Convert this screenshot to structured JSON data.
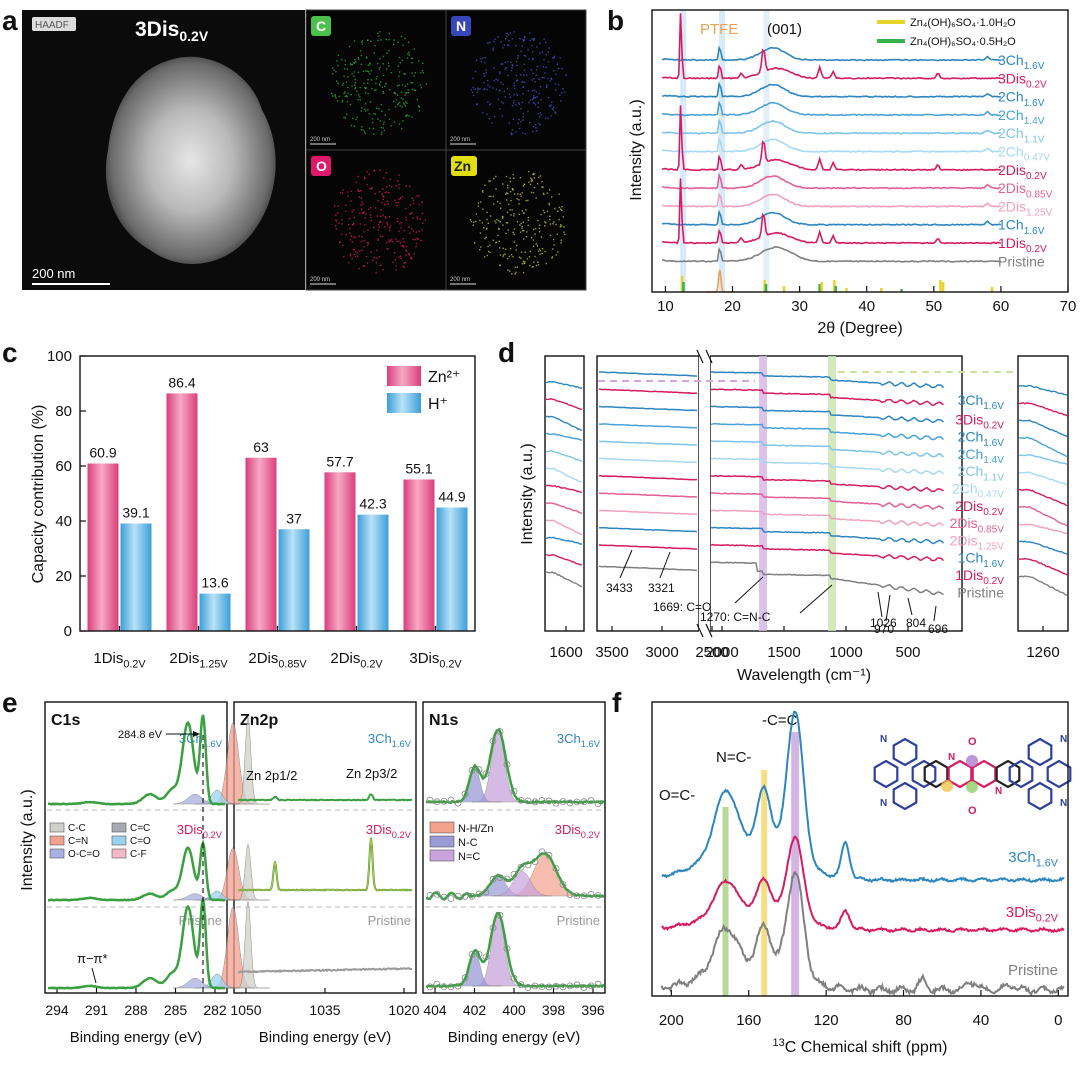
{
  "colors": {
    "charge": "#2e86c1",
    "discharge": "#d81b60",
    "pristine": "#808080",
    "zn_bar": "#e8568f",
    "h_bar": "#5fb4e8",
    "green_fit": "#3aa041"
  },
  "panel_a": {
    "label": "a",
    "title": "3Dis",
    "title_sub": "0.2V",
    "badge": "HAADF",
    "scalebar": "200 nm",
    "small_scale": "200 nm",
    "maps": [
      {
        "element": "C",
        "color": "#4cc04a",
        "dot": "#27b83d"
      },
      {
        "element": "N",
        "color": "#3746b8",
        "dot": "#4a54d0"
      },
      {
        "element": "O",
        "color": "#e0196c",
        "dot": "#e01a6a"
      },
      {
        "element": "Zn",
        "color": "#e2df10",
        "dot": "#cfcb2c"
      }
    ]
  },
  "panel_b": {
    "label": "b",
    "ptfe": "PTFE",
    "peak_001": "(001)",
    "legend": [
      {
        "text": "Zn₄(OH)₆SO₄·1.0H₂O",
        "color": "#e6d428"
      },
      {
        "text": "Zn₄(OH)₆SO₄·0.5H₂O",
        "color": "#38b14a"
      }
    ],
    "xlabel": "2θ (Degree)",
    "ylabel": "Intensity (a.u.)",
    "xticks": [
      "10",
      "20",
      "30",
      "40",
      "50",
      "60",
      "70"
    ],
    "traces": [
      {
        "main": "3Ch",
        "sub": "1.6V",
        "color": "#2e86c1"
      },
      {
        "main": "3Dis",
        "sub": "0.2V",
        "color": "#d81b60"
      },
      {
        "main": "2Ch",
        "sub": "1.6V",
        "color": "#2e86c1"
      },
      {
        "main": "2Ch",
        "sub": "1.4V",
        "color": "#4aa3d8"
      },
      {
        "main": "2Ch",
        "sub": "1.1V",
        "color": "#7fc4ea"
      },
      {
        "main": "2Ch",
        "sub": "0.47V",
        "color": "#a6d9f3"
      },
      {
        "main": "2Dis",
        "sub": "0.2V",
        "color": "#d81b60"
      },
      {
        "main": "2Dis",
        "sub": "0.85V",
        "color": "#e45f95"
      },
      {
        "main": "2Dis",
        "sub": "1.25V",
        "color": "#f0a1c0"
      },
      {
        "main": "1Ch",
        "sub": "1.6V",
        "color": "#2e86c1"
      },
      {
        "main": "1Dis",
        "sub": "0.2V",
        "color": "#d81b60"
      },
      {
        "main": "Pristine",
        "sub": "",
        "color": "#808080"
      }
    ]
  },
  "chart_data": [
    {
      "type": "bar",
      "title": "",
      "xlabel": "",
      "ylabel": "Capacity contribution (%)",
      "ylim": [
        0,
        100
      ],
      "yticks": [
        "0",
        "20",
        "40",
        "60",
        "80",
        "100"
      ],
      "categories": [
        {
          "main": "1Dis",
          "sub": "0.2V"
        },
        {
          "main": "2Dis",
          "sub": "1.25V"
        },
        {
          "main": "2Dis",
          "sub": "0.85V"
        },
        {
          "main": "2Dis",
          "sub": "0.2V"
        },
        {
          "main": "3Dis",
          "sub": "0.2V"
        }
      ],
      "series": [
        {
          "name": "Zn²⁺",
          "labels": [
            "60.9",
            "86.4",
            "63",
            "57.7",
            "55.1"
          ],
          "values": [
            60.9,
            86.4,
            63,
            57.7,
            55.1
          ]
        },
        {
          "name": "H⁺",
          "labels": [
            "39.1",
            "13.6",
            "37",
            "42.3",
            "44.9"
          ],
          "values": [
            39.1,
            13.6,
            37,
            42.3,
            44.9
          ]
        }
      ],
      "legend_position": "top-right"
    }
  ],
  "panel_c": {
    "label": "c"
  },
  "panel_d": {
    "label": "d",
    "ylabel": "Intensity (a.u.)",
    "xlabel": "Wavelength (cm⁻¹)",
    "xticks_left": [
      "1600"
    ],
    "xticks_main1": [
      "3500",
      "3000",
      "2500"
    ],
    "xticks_main2": [
      "2000",
      "1500",
      "1000",
      "500"
    ],
    "xticks_right": [
      "1260"
    ],
    "annotations": [
      "3433",
      "3321",
      "1669: C=O",
      "1270: C=N-C",
      "1026",
      "970",
      "804",
      "696"
    ],
    "traces": [
      {
        "main": "3Ch",
        "sub": "1.6V",
        "color": "#2e86c1"
      },
      {
        "main": "3Dis",
        "sub": "0.2V",
        "color": "#d81b60"
      },
      {
        "main": "2Ch",
        "sub": "1.6V",
        "color": "#2e86c1"
      },
      {
        "main": "2Ch",
        "sub": "1.4V",
        "color": "#4aa3d8"
      },
      {
        "main": "2Ch",
        "sub": "1.1V",
        "color": "#7fc4ea"
      },
      {
        "main": "2Ch",
        "sub": "0.47V",
        "color": "#a6d9f3"
      },
      {
        "main": "2Dis",
        "sub": "0.2V",
        "color": "#d81b60"
      },
      {
        "main": "2Dis",
        "sub": "0.85V",
        "color": "#e45f95"
      },
      {
        "main": "2Dis",
        "sub": "1.25V",
        "color": "#f0a1c0"
      },
      {
        "main": "1Ch",
        "sub": "1.6V",
        "color": "#2e86c1"
      },
      {
        "main": "1Dis",
        "sub": "0.2V",
        "color": "#d81b60"
      },
      {
        "main": "Pristine",
        "sub": "",
        "color": "#808080"
      }
    ]
  },
  "panel_e": {
    "label": "e",
    "ylabel": "Intensity (a.u.)",
    "sub1": {
      "title": "C1s",
      "peak_label": "284.8 eV",
      "pi_label": "π−π*",
      "xticks": [
        "294",
        "291",
        "288",
        "285",
        "282"
      ],
      "xlabel": "Binding energy (eV)",
      "legend": [
        {
          "text": "C-C",
          "color": "#cfd1c8"
        },
        {
          "text": "C=C",
          "color": "#a9aab2"
        },
        {
          "text": "C=N",
          "color": "#f2a08f"
        },
        {
          "text": "C=O",
          "color": "#99d2f0"
        },
        {
          "text": "O-C=O",
          "color": "#aab0e0"
        },
        {
          "text": "C-F",
          "color": "#f3b8c9"
        }
      ]
    },
    "sub2": {
      "title": "Zn2p",
      "p12": "Zn 2p1/2",
      "p32": "Zn 2p3/2",
      "xticks": [
        "1050",
        "1035",
        "1020"
      ],
      "xlabel": "Binding energy (eV)"
    },
    "sub3": {
      "title": "N1s",
      "xticks": [
        "404",
        "402",
        "400",
        "398",
        "396"
      ],
      "xlabel": "Binding energy (eV)",
      "legend": [
        {
          "text": "N-H/Zn",
          "color": "#f3a18d"
        },
        {
          "text": "N-C",
          "color": "#9a9ad6"
        },
        {
          "text": "N=C",
          "color": "#c8a3dc"
        }
      ]
    },
    "samples": [
      {
        "main": "3Ch",
        "sub": "1.6V",
        "color": "#2e86c1"
      },
      {
        "main": "3Dis",
        "sub": "0.2V",
        "color": "#d81b60"
      },
      {
        "main": "Pristine",
        "sub": "",
        "color": "#9a9a9a"
      }
    ]
  },
  "panel_f": {
    "label": "f",
    "xlabel_sup": "13",
    "xlabel": "C Chemical shift (ppm)",
    "xticks": [
      "200",
      "160",
      "120",
      "80",
      "40",
      "0"
    ],
    "band_labels": [
      "O=C-",
      "N=C-",
      "-C=C"
    ],
    "traces": [
      {
        "main": "3Ch",
        "sub": "1.6V",
        "color": "#2e86c1"
      },
      {
        "main": "3Dis",
        "sub": "0.2V",
        "color": "#d81b60"
      },
      {
        "main": "Pristine",
        "sub": "",
        "color": "#808080"
      }
    ]
  }
}
